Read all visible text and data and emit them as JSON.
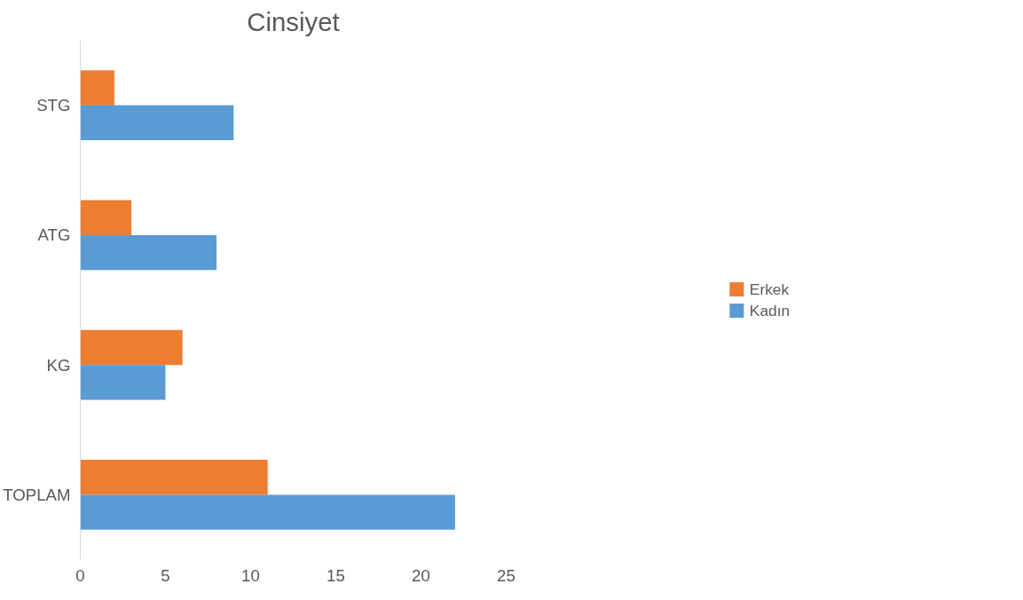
{
  "chart_data": {
    "type": "bar",
    "orientation": "horizontal",
    "title": "Cinsiyet",
    "categories": [
      "STG",
      "ATG",
      "KG",
      "TOPLAM"
    ],
    "series": [
      {
        "name": "Erkek",
        "color": "#ed7d31",
        "values": [
          2,
          3,
          6,
          11
        ]
      },
      {
        "name": "Kadın",
        "color": "#5b9bd5",
        "values": [
          9,
          8,
          5,
          22
        ]
      }
    ],
    "xlim": [
      0,
      25
    ],
    "xticks": [
      0,
      5,
      10,
      15,
      20,
      25
    ],
    "grid": false,
    "legend": "right"
  }
}
